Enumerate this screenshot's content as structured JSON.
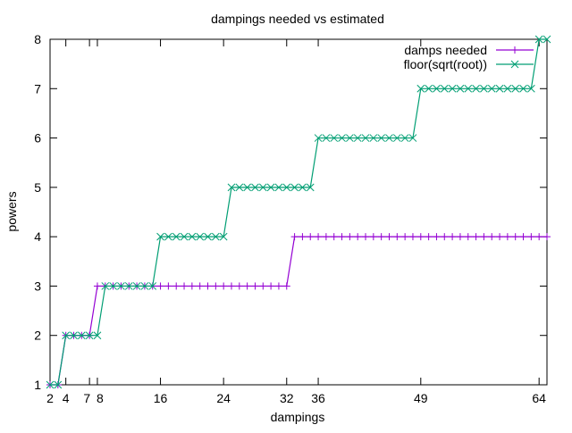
{
  "chart_data": {
    "type": "line",
    "title": "dampings needed vs estimated",
    "xlabel": "dampings",
    "ylabel": "powers",
    "xlim": [
      2,
      65
    ],
    "ylim": [
      1,
      8
    ],
    "xticks": [
      2,
      4,
      7,
      8,
      16,
      24,
      32,
      36,
      49,
      64
    ],
    "yticks": [
      1,
      2,
      3,
      4,
      5,
      6,
      7,
      8
    ],
    "grid": false,
    "legend_position": "top-right",
    "x": [
      2,
      3,
      4,
      5,
      6,
      7,
      8,
      9,
      10,
      11,
      12,
      13,
      14,
      15,
      16,
      17,
      18,
      19,
      20,
      21,
      22,
      23,
      24,
      25,
      26,
      27,
      28,
      29,
      30,
      31,
      32,
      33,
      34,
      35,
      36,
      37,
      38,
      39,
      40,
      41,
      42,
      43,
      44,
      45,
      46,
      47,
      48,
      49,
      50,
      51,
      52,
      53,
      54,
      55,
      56,
      57,
      58,
      59,
      60,
      61,
      62,
      63,
      64,
      65
    ],
    "series": [
      {
        "name": "damps needed",
        "color": "#9400d3",
        "marker": "plus",
        "values": [
          1,
          1,
          2,
          2,
          2,
          2,
          3,
          3,
          3,
          3,
          3,
          3,
          3,
          3,
          3,
          3,
          3,
          3,
          3,
          3,
          3,
          3,
          3,
          3,
          3,
          3,
          3,
          3,
          3,
          3,
          3,
          4,
          4,
          4,
          4,
          4,
          4,
          4,
          4,
          4,
          4,
          4,
          4,
          4,
          4,
          4,
          4,
          4,
          4,
          4,
          4,
          4,
          4,
          4,
          4,
          4,
          4,
          4,
          4,
          4,
          4,
          4,
          4,
          4
        ]
      },
      {
        "name": "floor(sqrt(root))",
        "color": "#009e73",
        "marker": "cross",
        "values": [
          1,
          1,
          2,
          2,
          2,
          2,
          2,
          3,
          3,
          3,
          3,
          3,
          3,
          3,
          4,
          4,
          4,
          4,
          4,
          4,
          4,
          4,
          4,
          5,
          5,
          5,
          5,
          5,
          5,
          5,
          5,
          5,
          5,
          5,
          6,
          6,
          6,
          6,
          6,
          6,
          6,
          6,
          6,
          6,
          6,
          6,
          6,
          7,
          7,
          7,
          7,
          7,
          7,
          7,
          7,
          7,
          7,
          7,
          7,
          7,
          7,
          7,
          8,
          8
        ]
      }
    ]
  }
}
